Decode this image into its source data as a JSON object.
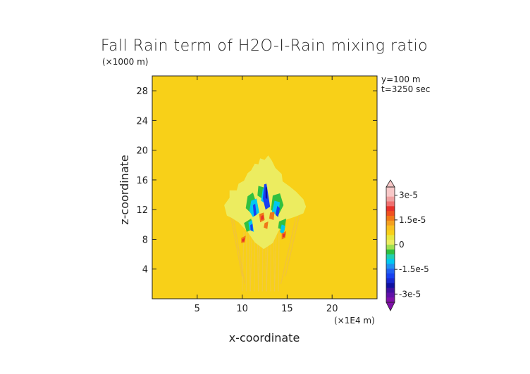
{
  "chart_data": {
    "type": "heatmap",
    "title": "Fall Rain term of H2O-I-Rain mixing ratio",
    "xlabel": "x-coordinate",
    "ylabel": "z-coordinate",
    "x_unit": "(×1E4 m)",
    "y_unit": "(×1000 m)",
    "annotations": [
      "y=100 m",
      "t=3250 sec"
    ],
    "xlim": [
      0,
      25
    ],
    "ylim": [
      0,
      30
    ],
    "x_ticks": [
      5,
      10,
      15,
      20
    ],
    "y_ticks": [
      4,
      8,
      12,
      16,
      20,
      24,
      28
    ],
    "colorbar": {
      "labels": [
        "3e-5",
        "1.5e-5",
        "0",
        "-1.5e-5",
        "-3e-5"
      ],
      "label_values": [
        3e-05,
        1.5e-05,
        0,
        -1.5e-05,
        -3e-05
      ],
      "range": [
        -3.5e-05,
        3.5e-05
      ],
      "colors": {
        "max_pink": "#f8c8c8",
        "red": "#e8302a",
        "orange": "#f07818",
        "yellow_zero": "#f8d018",
        "light_yellow": "#ecec60",
        "green": "#30c040",
        "cyan": "#00c8f0",
        "blue": "#1840f0",
        "navy": "#1010a0",
        "purple": "#8010a8"
      }
    },
    "background_color": "#f8d018"
  }
}
